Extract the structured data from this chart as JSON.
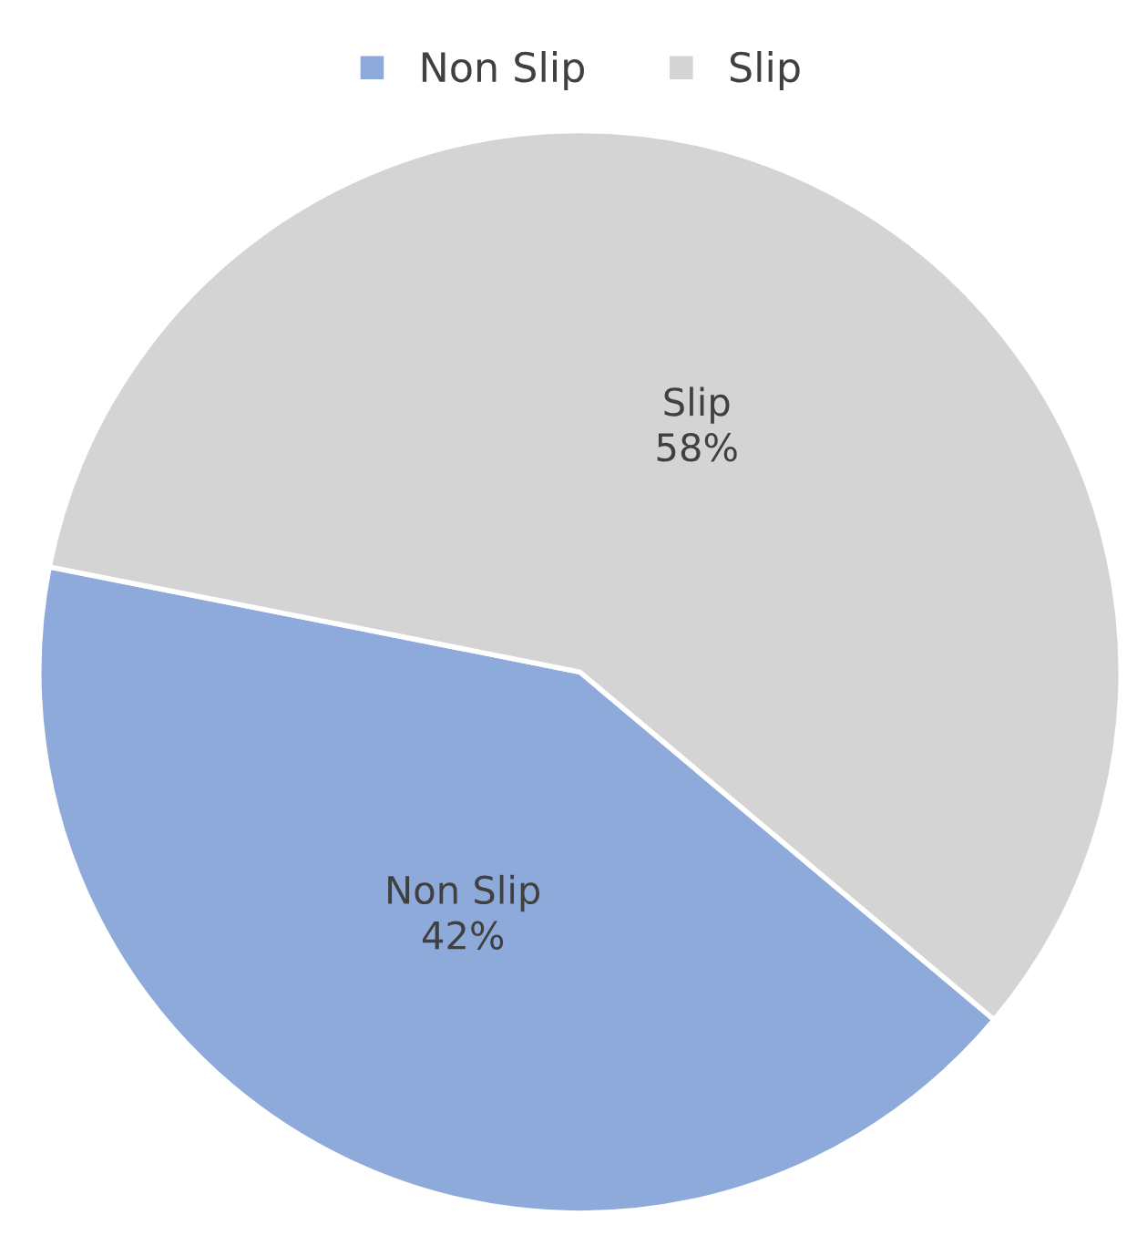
{
  "chart_data": {
    "type": "pie",
    "categories": [
      "Non Slip",
      "Slip"
    ],
    "values": [
      42,
      58
    ],
    "colors": [
      "#8eaadb",
      "#d4d4d4"
    ],
    "value_labels": [
      "42%",
      "58%"
    ],
    "legend": "top"
  }
}
